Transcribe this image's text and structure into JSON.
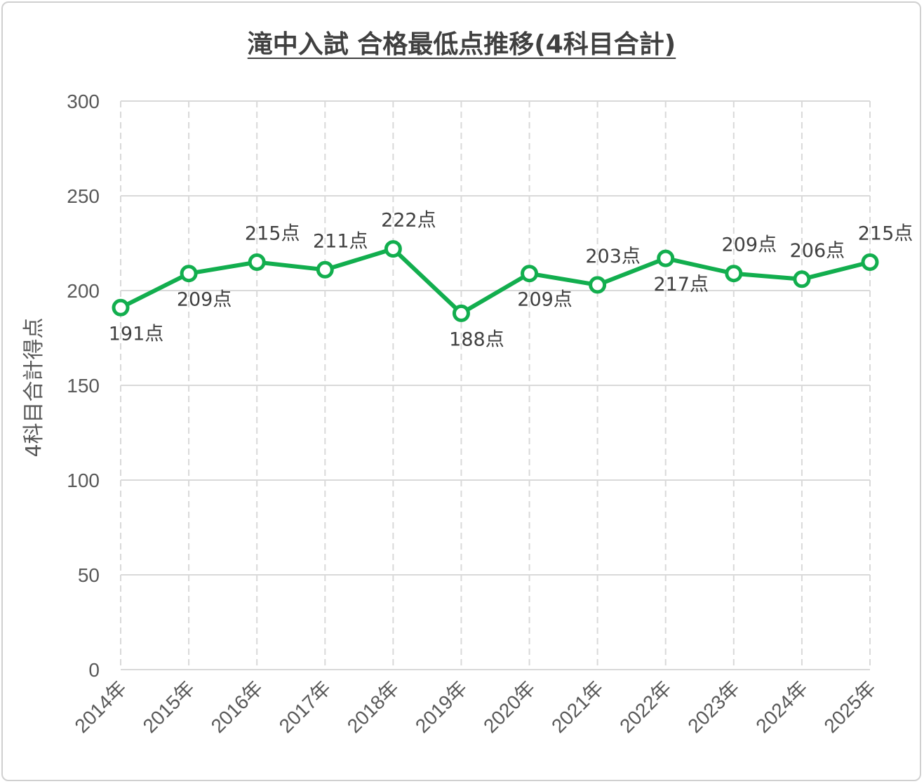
{
  "chart_data": {
    "type": "line",
    "title": "滝中入試 合格最低点推移(4科目合計)",
    "ylabel": "4科目合計得点",
    "xlabel": "",
    "ylim": [
      0,
      300
    ],
    "yticks": [
      0,
      50,
      100,
      150,
      200,
      250,
      300
    ],
    "grid": true,
    "categories": [
      "2014年",
      "2015年",
      "2016年",
      "2017年",
      "2018年",
      "2019年",
      "2020年",
      "2021年",
      "2022年",
      "2023年",
      "2024年",
      "2025年"
    ],
    "series": [
      {
        "values": [
          191,
          209,
          215,
          211,
          222,
          188,
          209,
          203,
          217,
          209,
          206,
          215
        ],
        "data_labels": [
          "191点",
          "209点",
          "215点",
          "211点",
          "222点",
          "188点",
          "209点",
          "203点",
          "217点",
          "209点",
          "206点",
          "215点"
        ],
        "label_positions": [
          "below",
          "below",
          "above",
          "above",
          "above",
          "below",
          "below",
          "above",
          "below",
          "above",
          "above",
          "above"
        ],
        "color": "#12ae4e"
      }
    ]
  }
}
